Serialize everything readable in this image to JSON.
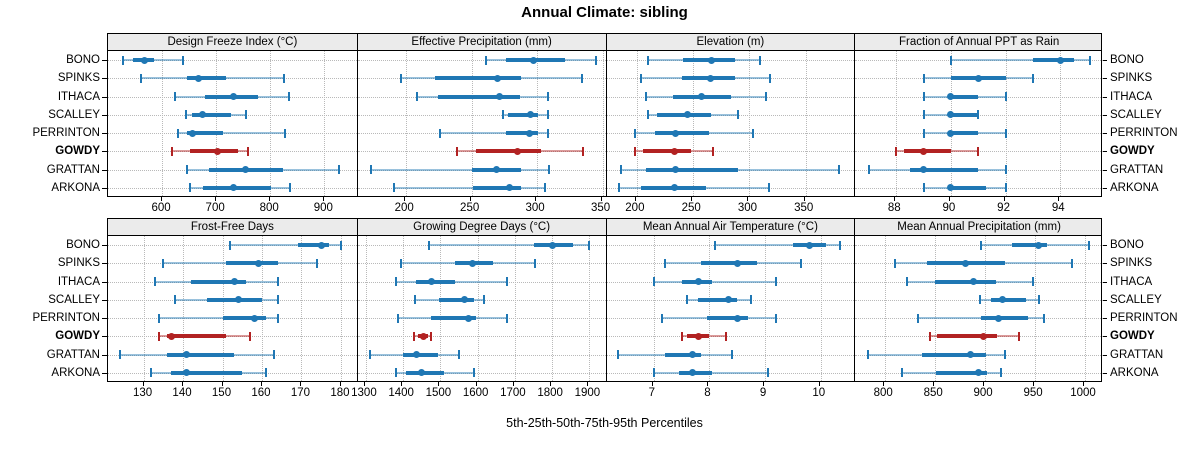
{
  "title": "Annual Climate: sibling",
  "caption": "5th-25th-50th-75th-95th Percentiles",
  "colors": {
    "series": "#1f77b4",
    "series_faint": "rgba(31,119,180,0.45)",
    "highlight": "#b22222",
    "highlight_faint": "rgba(178,34,34,0.45)",
    "strip_bg": "#ebebeb",
    "grid": "#b9b9b9",
    "border": "#000000"
  },
  "chart_data": {
    "type": "dotplot-percentiles",
    "title": "Annual Climate: sibling",
    "caption": "5th-25th-50th-75th-95th Percentiles",
    "grid": "dotted",
    "legend_position": "none",
    "percentiles": [
      5,
      25,
      50,
      75,
      95
    ],
    "sites": [
      "BONO",
      "SPINKS",
      "ITHACA",
      "SCALLEY",
      "PERRINTON",
      "GOWDY",
      "GRATTAN",
      "ARKONA"
    ],
    "highlight_site": "GOWDY",
    "panels": [
      {
        "row": 1,
        "title": "Design Freeze Index (°C)",
        "xlim": [
          500,
          960
        ],
        "xticks": [
          600,
          700,
          800,
          900
        ],
        "values": [
          [
            528,
            547,
            568,
            586,
            638
          ],
          [
            561,
            647,
            667,
            719,
            826
          ],
          [
            624,
            680,
            733,
            777,
            835
          ],
          [
            644,
            655,
            675,
            727,
            755
          ],
          [
            630,
            646,
            657,
            713,
            828
          ],
          [
            618,
            652,
            702,
            740,
            759
          ],
          [
            647,
            686,
            755,
            823,
            927
          ],
          [
            651,
            675,
            733,
            802,
            837
          ]
        ]
      },
      {
        "row": 1,
        "title": "Effective Precipitation (mm)",
        "xlim": [
          163,
          353
        ],
        "xticks": [
          200,
          250,
          300,
          350
        ],
        "values": [
          [
            261,
            276,
            297,
            321,
            345
          ],
          [
            196,
            222,
            270,
            288,
            334
          ],
          [
            208,
            224,
            271,
            287,
            308
          ],
          [
            274,
            278,
            295,
            301,
            308
          ],
          [
            226,
            276,
            294,
            301,
            308
          ],
          [
            239,
            253,
            285,
            303,
            335
          ],
          [
            173,
            250,
            269,
            288,
            309
          ],
          [
            191,
            251,
            279,
            288,
            306
          ]
        ]
      },
      {
        "row": 1,
        "title": "Elevation (m)",
        "xlim": [
          173,
          394
        ],
        "xticks": [
          200,
          250,
          300,
          350
        ],
        "values": [
          [
            210,
            241,
            266,
            287,
            309
          ],
          [
            204,
            240,
            265,
            287,
            318
          ],
          [
            208,
            232,
            257,
            284,
            315
          ],
          [
            210,
            218,
            245,
            266,
            290
          ],
          [
            198,
            216,
            234,
            264,
            303
          ],
          [
            198,
            205,
            233,
            248,
            268
          ],
          [
            186,
            208,
            234,
            290,
            380
          ],
          [
            184,
            204,
            233,
            261,
            317
          ]
        ]
      },
      {
        "row": 1,
        "title": "Fraction of Annual PPT as Rain",
        "xlim": [
          86.5,
          95.6
        ],
        "xticks": [
          88,
          90,
          92,
          94
        ],
        "values": [
          [
            90,
            93,
            94,
            94.5,
            95.1
          ],
          [
            89,
            90,
            91,
            92,
            93
          ],
          [
            89,
            90,
            90,
            91,
            92
          ],
          [
            89,
            90,
            90,
            91,
            91
          ],
          [
            89,
            90,
            90,
            91,
            92
          ],
          [
            88,
            88.3,
            89,
            90,
            91
          ],
          [
            87,
            88.5,
            89,
            91,
            92
          ],
          [
            89,
            90,
            90,
            91.3,
            92
          ]
        ]
      },
      {
        "row": 2,
        "title": "Frost-Free Days",
        "xlim": [
          121,
          184
        ],
        "xticks": [
          130,
          140,
          150,
          160,
          170,
          180
        ],
        "values": [
          [
            152,
            169,
            175,
            177,
            180
          ],
          [
            135,
            151,
            159,
            164,
            174
          ],
          [
            133,
            142,
            153,
            156,
            164
          ],
          [
            138,
            146,
            154,
            160,
            164
          ],
          [
            134,
            150,
            158,
            161,
            164
          ],
          [
            134,
            136,
            137,
            151,
            157
          ],
          [
            124,
            136,
            141,
            153,
            163
          ],
          [
            132,
            137,
            141,
            155,
            161
          ]
        ]
      },
      {
        "row": 2,
        "title": "Growing Degree Days (°C)",
        "xlim": [
          1278,
          1946
        ],
        "xticks": [
          1300,
          1400,
          1500,
          1600,
          1700,
          1800,
          1900
        ],
        "values": [
          [
            1470,
            1750,
            1800,
            1855,
            1900
          ],
          [
            1395,
            1540,
            1585,
            1640,
            1755
          ],
          [
            1380,
            1435,
            1475,
            1540,
            1680
          ],
          [
            1433,
            1497,
            1565,
            1590,
            1617
          ],
          [
            1385,
            1475,
            1575,
            1595,
            1680
          ],
          [
            1430,
            1440,
            1455,
            1466,
            1475
          ],
          [
            1310,
            1400,
            1435,
            1493,
            1550
          ],
          [
            1382,
            1408,
            1450,
            1510,
            1590
          ]
        ]
      },
      {
        "row": 2,
        "title": "Mean Annual Air Temperature (°C)",
        "xlim": [
          6.15,
          10.62
        ],
        "xticks": [
          7,
          8,
          9,
          10
        ],
        "values": [
          [
            8.1,
            9.5,
            9.8,
            10.1,
            10.35
          ],
          [
            7.2,
            7.85,
            8.5,
            8.85,
            9.65
          ],
          [
            7.0,
            7.5,
            7.8,
            8.05,
            9.2
          ],
          [
            7.6,
            7.8,
            8.35,
            8.5,
            8.75
          ],
          [
            7.15,
            7.95,
            8.5,
            8.7,
            9.2
          ],
          [
            7.5,
            7.6,
            7.8,
            8.0,
            8.3
          ],
          [
            6.35,
            7.2,
            7.7,
            7.85,
            8.4
          ],
          [
            7.0,
            7.45,
            7.7,
            8.05,
            9.05
          ]
        ]
      },
      {
        "row": 2,
        "title": "Mean Annual Precipitation (mm)",
        "xlim": [
          770,
          1019
        ],
        "xticks": [
          800,
          850,
          900,
          950,
          1000
        ],
        "values": [
          [
            896,
            927,
            953,
            962,
            1004
          ],
          [
            810,
            842,
            880,
            920,
            987
          ],
          [
            822,
            850,
            888,
            911,
            948
          ],
          [
            895,
            906,
            917,
            941,
            954
          ],
          [
            833,
            896,
            913,
            943,
            959
          ],
          [
            845,
            852,
            898,
            912,
            934
          ],
          [
            783,
            837,
            885,
            901,
            920
          ],
          [
            817,
            851,
            893,
            902,
            916
          ]
        ]
      }
    ]
  }
}
